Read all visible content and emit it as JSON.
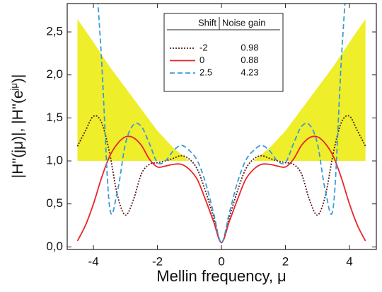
{
  "chart_data": {
    "type": "line",
    "xlabel": "Mellin frequency, μ",
    "ylabel": "|H''(jμ)|, |H''(e",
    "ylabel_sup": "jμ",
    "ylabel_end": ")|",
    "xlim": [
      -4.82,
      4.84
    ],
    "ylim": [
      -0.03,
      2.83
    ],
    "xticks": [
      -4,
      -2,
      0,
      2,
      4
    ],
    "yticks": [
      {
        "value": 0,
        "label": "0,0"
      },
      {
        "value": 0.5,
        "label": "0,5"
      },
      {
        "value": 1,
        "label": "1,0"
      },
      {
        "value": 1.5,
        "label": "1,5"
      },
      {
        "value": 2,
        "label": "2,0"
      },
      {
        "value": 2.5,
        "label": "2,5"
      }
    ],
    "legend_headers": [
      "Shift",
      "Noise gain"
    ],
    "band_color": "#eeee2a",
    "bands": [
      {
        "x": [
          -4.5,
          -4,
          -3.5,
          -3,
          -2.5,
          -2,
          -1.5,
          -1
        ],
        "upper": [
          2.65,
          2.38,
          2.1,
          1.85,
          1.6,
          1.35,
          1.15,
          1.0
        ],
        "lower": [
          1,
          1,
          1,
          1,
          1,
          1,
          1,
          1
        ]
      },
      {
        "x": [
          1,
          1.5,
          2,
          2.5,
          3,
          3.5,
          4,
          4.5
        ],
        "upper": [
          1.0,
          1.15,
          1.35,
          1.6,
          1.85,
          2.1,
          2.38,
          2.65
        ],
        "lower": [
          1,
          1,
          1,
          1,
          1,
          1,
          1,
          1
        ]
      }
    ],
    "x": [
      -4.5,
      -4.25,
      -4,
      -3.75,
      -3.5,
      -3.25,
      -3,
      -2.75,
      -2.5,
      -2.25,
      -2,
      -1.75,
      -1.5,
      -1.25,
      -1,
      -0.75,
      -0.5,
      -0.25,
      0,
      0.25,
      0.5,
      0.75,
      1,
      1.25,
      1.5,
      1.75,
      2,
      2.25,
      2.5,
      2.75,
      3,
      3.25,
      3.5,
      3.75,
      4,
      4.25,
      4.5
    ],
    "series": [
      {
        "name": "-2",
        "noise_gain": 0.98,
        "color": "#5a1a1a",
        "dash": "2,2",
        "values": [
          1.17,
          1.35,
          1.52,
          1.45,
          1.1,
          0.6,
          0.37,
          0.55,
          0.85,
          0.96,
          0.98,
          1.0,
          1.03,
          1.06,
          1.02,
          0.9,
          0.65,
          0.35,
          0.05,
          0.35,
          0.65,
          0.9,
          1.02,
          1.06,
          1.03,
          1.0,
          0.98,
          0.96,
          0.85,
          0.55,
          0.37,
          0.6,
          1.1,
          1.45,
          1.52,
          1.35,
          1.17
        ]
      },
      {
        "name": "0",
        "noise_gain": 0.88,
        "color": "#e8262a",
        "dash": "none",
        "values": [
          0.07,
          0.25,
          0.5,
          0.8,
          1.05,
          1.2,
          1.28,
          1.27,
          1.18,
          1.02,
          0.93,
          0.94,
          0.96,
          0.96,
          0.9,
          0.78,
          0.55,
          0.3,
          0.05,
          0.3,
          0.55,
          0.78,
          0.9,
          0.96,
          0.96,
          0.94,
          0.93,
          1.02,
          1.18,
          1.27,
          1.28,
          1.2,
          1.05,
          0.8,
          0.5,
          0.25,
          0.07
        ]
      },
      {
        "name": "2.5",
        "noise_gain": 4.23,
        "color": "#3a9bd8",
        "dash": "7,4",
        "values": [
          null,
          null,
          3.6,
          2.2,
          0.48,
          0.65,
          1.2,
          1.42,
          1.4,
          1.2,
          0.98,
          1.0,
          1.12,
          1.18,
          1.12,
          1.0,
          0.75,
          0.4,
          0.05,
          0.4,
          0.75,
          1.0,
          1.12,
          1.18,
          1.12,
          1.0,
          0.98,
          1.2,
          1.4,
          1.42,
          1.2,
          0.65,
          0.48,
          2.2,
          3.6,
          null,
          null
        ]
      }
    ]
  }
}
